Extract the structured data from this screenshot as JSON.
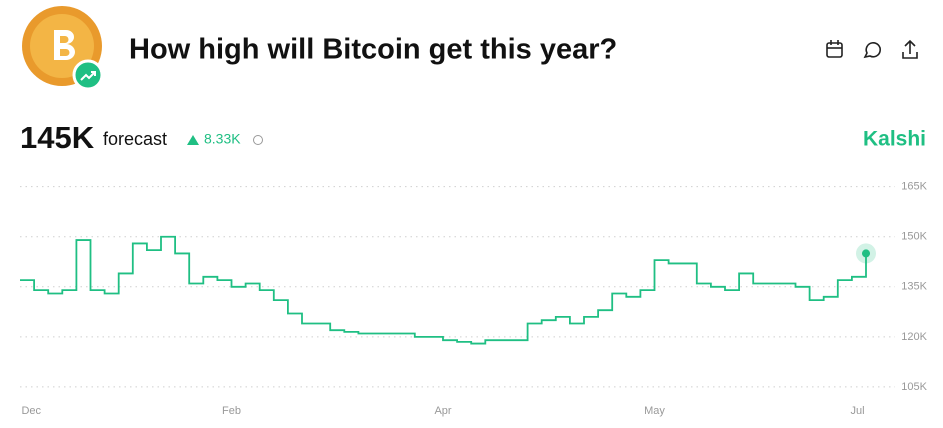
{
  "header": {
    "title": "How high will Bitcoin get this year?",
    "forecast_value": "145K",
    "forecast_label": "forecast",
    "change": "8.33K",
    "brand": "Kalshi"
  },
  "chart_data": {
    "type": "line",
    "series": [
      {
        "color": "#1fbf83",
        "values": [
          137,
          134,
          133,
          134,
          149,
          134,
          133,
          139,
          148,
          146,
          150,
          145,
          136,
          138,
          137,
          135,
          136,
          134,
          131,
          127,
          124,
          124,
          122,
          121.5,
          121,
          121,
          121,
          121,
          120,
          120,
          119,
          118.5,
          118,
          119,
          119,
          119,
          124,
          125,
          126,
          124,
          126,
          128,
          133,
          132,
          134,
          143,
          142,
          142,
          136,
          135,
          134,
          139,
          136,
          136,
          136,
          135,
          131,
          132,
          137,
          138,
          145
        ]
      }
    ],
    "xlim": [
      0,
      60
    ],
    "xticks": [
      {
        "value": 0.8,
        "label": "Dec"
      },
      {
        "value": 15,
        "label": "Feb"
      },
      {
        "value": 30,
        "label": "Apr"
      },
      {
        "value": 45,
        "label": "May"
      },
      {
        "value": 59.4,
        "label": "Jul"
      }
    ],
    "ylim": [
      103,
      167
    ],
    "yticks": [
      {
        "value": 165,
        "label": "165K"
      },
      {
        "value": 150,
        "label": "150K"
      },
      {
        "value": 135,
        "label": "135K"
      },
      {
        "value": 120,
        "label": "120K"
      },
      {
        "value": 105,
        "label": "105K"
      }
    ],
    "grid": true
  }
}
